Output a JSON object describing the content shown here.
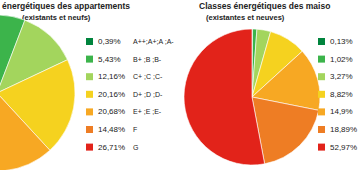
{
  "chart_data": [
    {
      "type": "pie",
      "title": "énergétiques des appartements",
      "subtitle": "(existants et neufs)",
      "categories": [
        "A++;A+;A ;A-",
        "B+ ;B ;B-",
        "C+ ;C ;C-",
        "D+ ;D ;D-",
        "E+ ;E ;E-",
        "F",
        "G"
      ],
      "values": [
        0.39,
        5.43,
        12.16,
        20.16,
        20.68,
        14.48,
        26.71
      ],
      "value_labels": [
        "0,39%",
        "5,43%",
        "12,16%",
        "20,16%",
        "20,68%",
        "14,48%",
        "26,71%"
      ],
      "colors": [
        "#00843d",
        "#3cb44b",
        "#a3d55d",
        "#f5d21f",
        "#f7a823",
        "#ee7d24",
        "#e2231a"
      ],
      "legend": "right"
    },
    {
      "type": "pie",
      "title": "Classes énergétiques des maiso",
      "subtitle": "(existantes et neuves)",
      "values": [
        0.13,
        1.02,
        3.27,
        8.82,
        14.9,
        18.89,
        52.97
      ],
      "value_labels": [
        "0,13%",
        "1,02%",
        "3,27%",
        "8,82%",
        "14,9%",
        "18,89%",
        "52,97%"
      ],
      "colors": [
        "#00843d",
        "#3cb44b",
        "#a3d55d",
        "#f5d21f",
        "#f7a823",
        "#ee7d24",
        "#e2231a"
      ],
      "legend": "right"
    }
  ]
}
